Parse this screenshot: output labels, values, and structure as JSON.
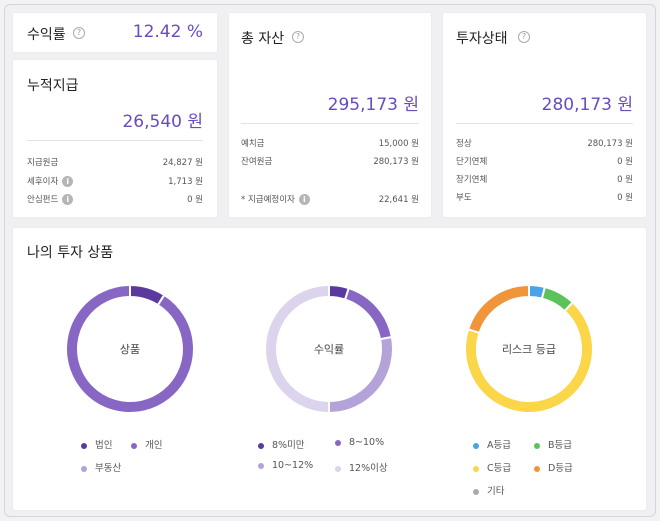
{
  "yield_card": {
    "title": "수익률",
    "value": "12.42 %"
  },
  "paid_card": {
    "title": "누적지급",
    "amount": "26,540 원",
    "rows": [
      {
        "label": "지급원금",
        "value": "24,827 원"
      },
      {
        "label": "세후이자",
        "value": "1,713 원"
      },
      {
        "label": "안심펀드",
        "value": "0 원"
      }
    ]
  },
  "assets_card": {
    "title": "총 자산",
    "amount": "295,173 원",
    "rows": [
      {
        "label": "예치금",
        "value": "15,000 원"
      },
      {
        "label": "잔여원금",
        "value": "280,173 원"
      }
    ],
    "footer": {
      "label": "* 지급예정이자",
      "value": "22,641 원"
    }
  },
  "status_card": {
    "title": "투자상태",
    "amount": "280,173 원",
    "rows": [
      {
        "label": "정상",
        "value": "280,173 원"
      },
      {
        "label": "단기연체",
        "value": "0 원"
      },
      {
        "label": "장기연체",
        "value": "0 원"
      },
      {
        "label": "부도",
        "value": "0 원"
      }
    ]
  },
  "products": {
    "title": "나의 투자 상품",
    "charts": [
      {
        "center_label": "상품",
        "slices": [
          {
            "name": "법인",
            "value": 9,
            "color": "#5a3a9e"
          },
          {
            "name": "개인",
            "value": 91,
            "color": "#8766c4"
          },
          {
            "name": "부동산",
            "value": 0,
            "color": "#b3a3d9"
          }
        ]
      },
      {
        "center_label": "수익률",
        "slices": [
          {
            "name": "8%미만",
            "value": 5,
            "color": "#5a3a9e"
          },
          {
            "name": "8~10%",
            "value": 17,
            "color": "#8766c4"
          },
          {
            "name": "10~12%",
            "value": 28,
            "color": "#b3a3d9"
          },
          {
            "name": "12%이상",
            "value": 50,
            "color": "#dcd3ed"
          }
        ]
      },
      {
        "center_label": "리스크 등급",
        "slices": [
          {
            "name": "A등급",
            "value": 4,
            "color": "#4aa3e8"
          },
          {
            "name": "B등급",
            "value": 8,
            "color": "#5cc25a"
          },
          {
            "name": "C등급",
            "value": 68,
            "color": "#fbd649"
          },
          {
            "name": "D등급",
            "value": 20,
            "color": "#f0953a"
          },
          {
            "name": "기타",
            "value": 0,
            "color": "#aaaaaa"
          }
        ]
      }
    ]
  },
  "chart_data": [
    {
      "type": "pie",
      "title": "상품",
      "categories": [
        "법인",
        "개인",
        "부동산"
      ],
      "values": [
        9,
        91,
        0
      ]
    },
    {
      "type": "pie",
      "title": "수익률",
      "categories": [
        "8%미만",
        "8~10%",
        "10~12%",
        "12%이상"
      ],
      "values": [
        5,
        17,
        28,
        50
      ]
    },
    {
      "type": "pie",
      "title": "리스크 등급",
      "categories": [
        "A등급",
        "B등급",
        "C등급",
        "D등급",
        "기타"
      ],
      "values": [
        4,
        8,
        68,
        20,
        0
      ]
    }
  ]
}
